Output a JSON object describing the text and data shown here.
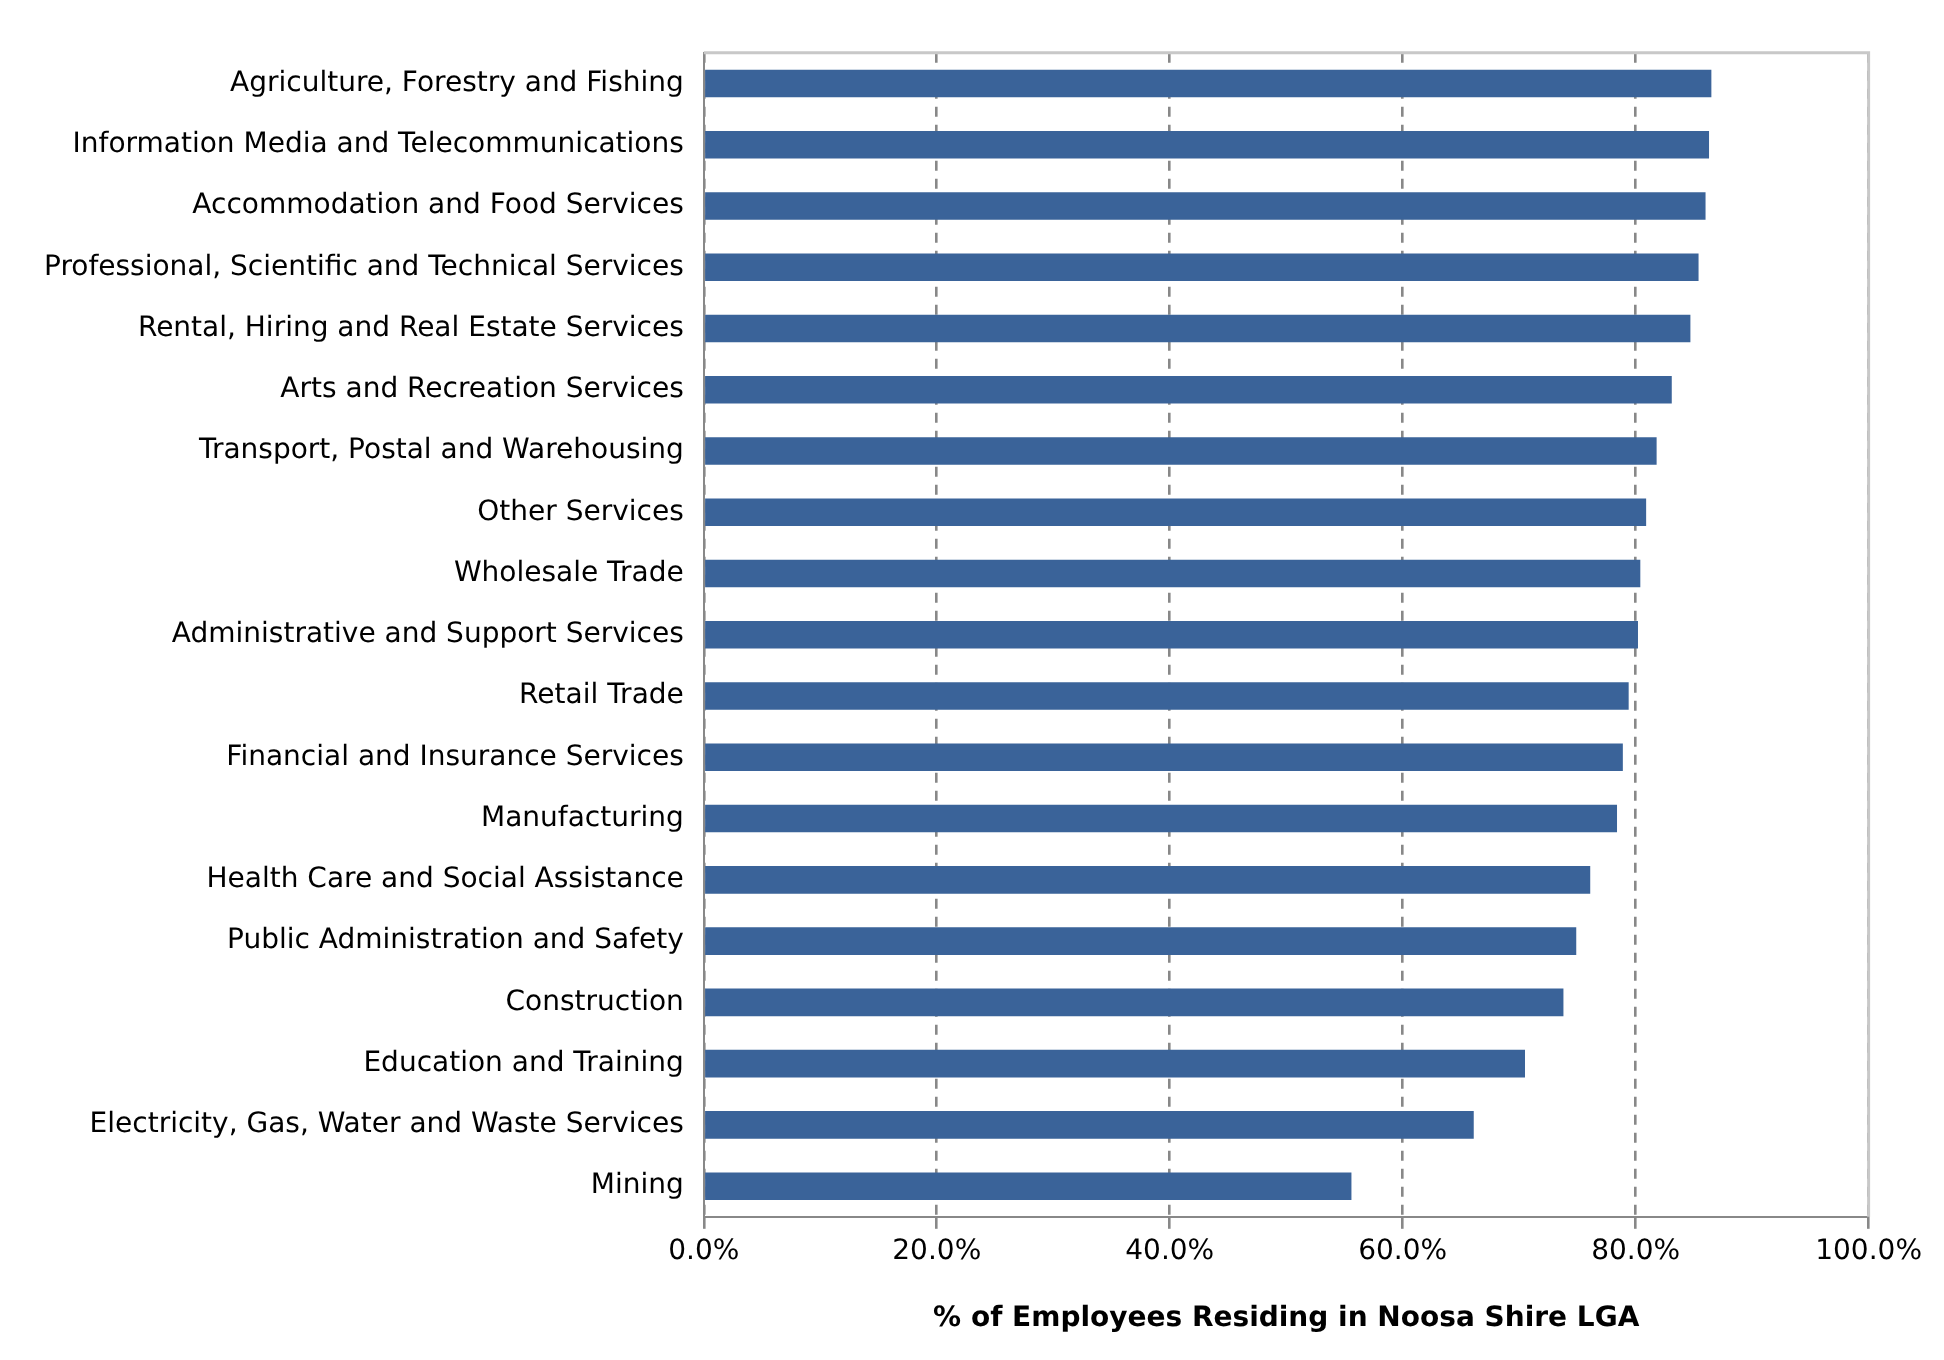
{
  "chart_data": {
    "type": "bar",
    "orientation": "horizontal",
    "xlabel": "% of Employees Residing in Noosa Shire LGA",
    "categories": [
      "Agriculture, Forestry and Fishing",
      "Information Media and Telecommunications",
      "Accommodation and Food Services",
      "Professional, Scientific and Technical Services",
      "Rental, Hiring and Real Estate Services",
      "Arts and Recreation Services",
      "Transport, Postal and Warehousing",
      "Other Services",
      "Wholesale Trade",
      "Administrative and Support Services",
      "Retail Trade",
      "Financial and Insurance Services",
      "Manufacturing",
      "Health Care and Social Assistance",
      "Public Administration and Safety",
      "Construction",
      "Education and Training",
      "Electricity, Gas, Water and Waste Services",
      "Mining"
    ],
    "values": [
      86.5,
      86.3,
      86.0,
      85.4,
      84.7,
      83.1,
      81.8,
      80.9,
      80.4,
      80.2,
      79.4,
      78.9,
      78.4,
      76.1,
      74.9,
      73.8,
      70.5,
      66.1,
      55.6
    ],
    "color": "#3a6399",
    "xlim": [
      0,
      100
    ],
    "xticks": [
      {
        "value": 0,
        "label": "0.0%"
      },
      {
        "value": 20,
        "label": "20.0%"
      },
      {
        "value": 40,
        "label": "40.0%"
      },
      {
        "value": 60,
        "label": "60.0%"
      },
      {
        "value": 80,
        "label": "80.0%"
      },
      {
        "value": 100,
        "label": "100.0%"
      }
    ],
    "grid": "x",
    "legend": false
  }
}
